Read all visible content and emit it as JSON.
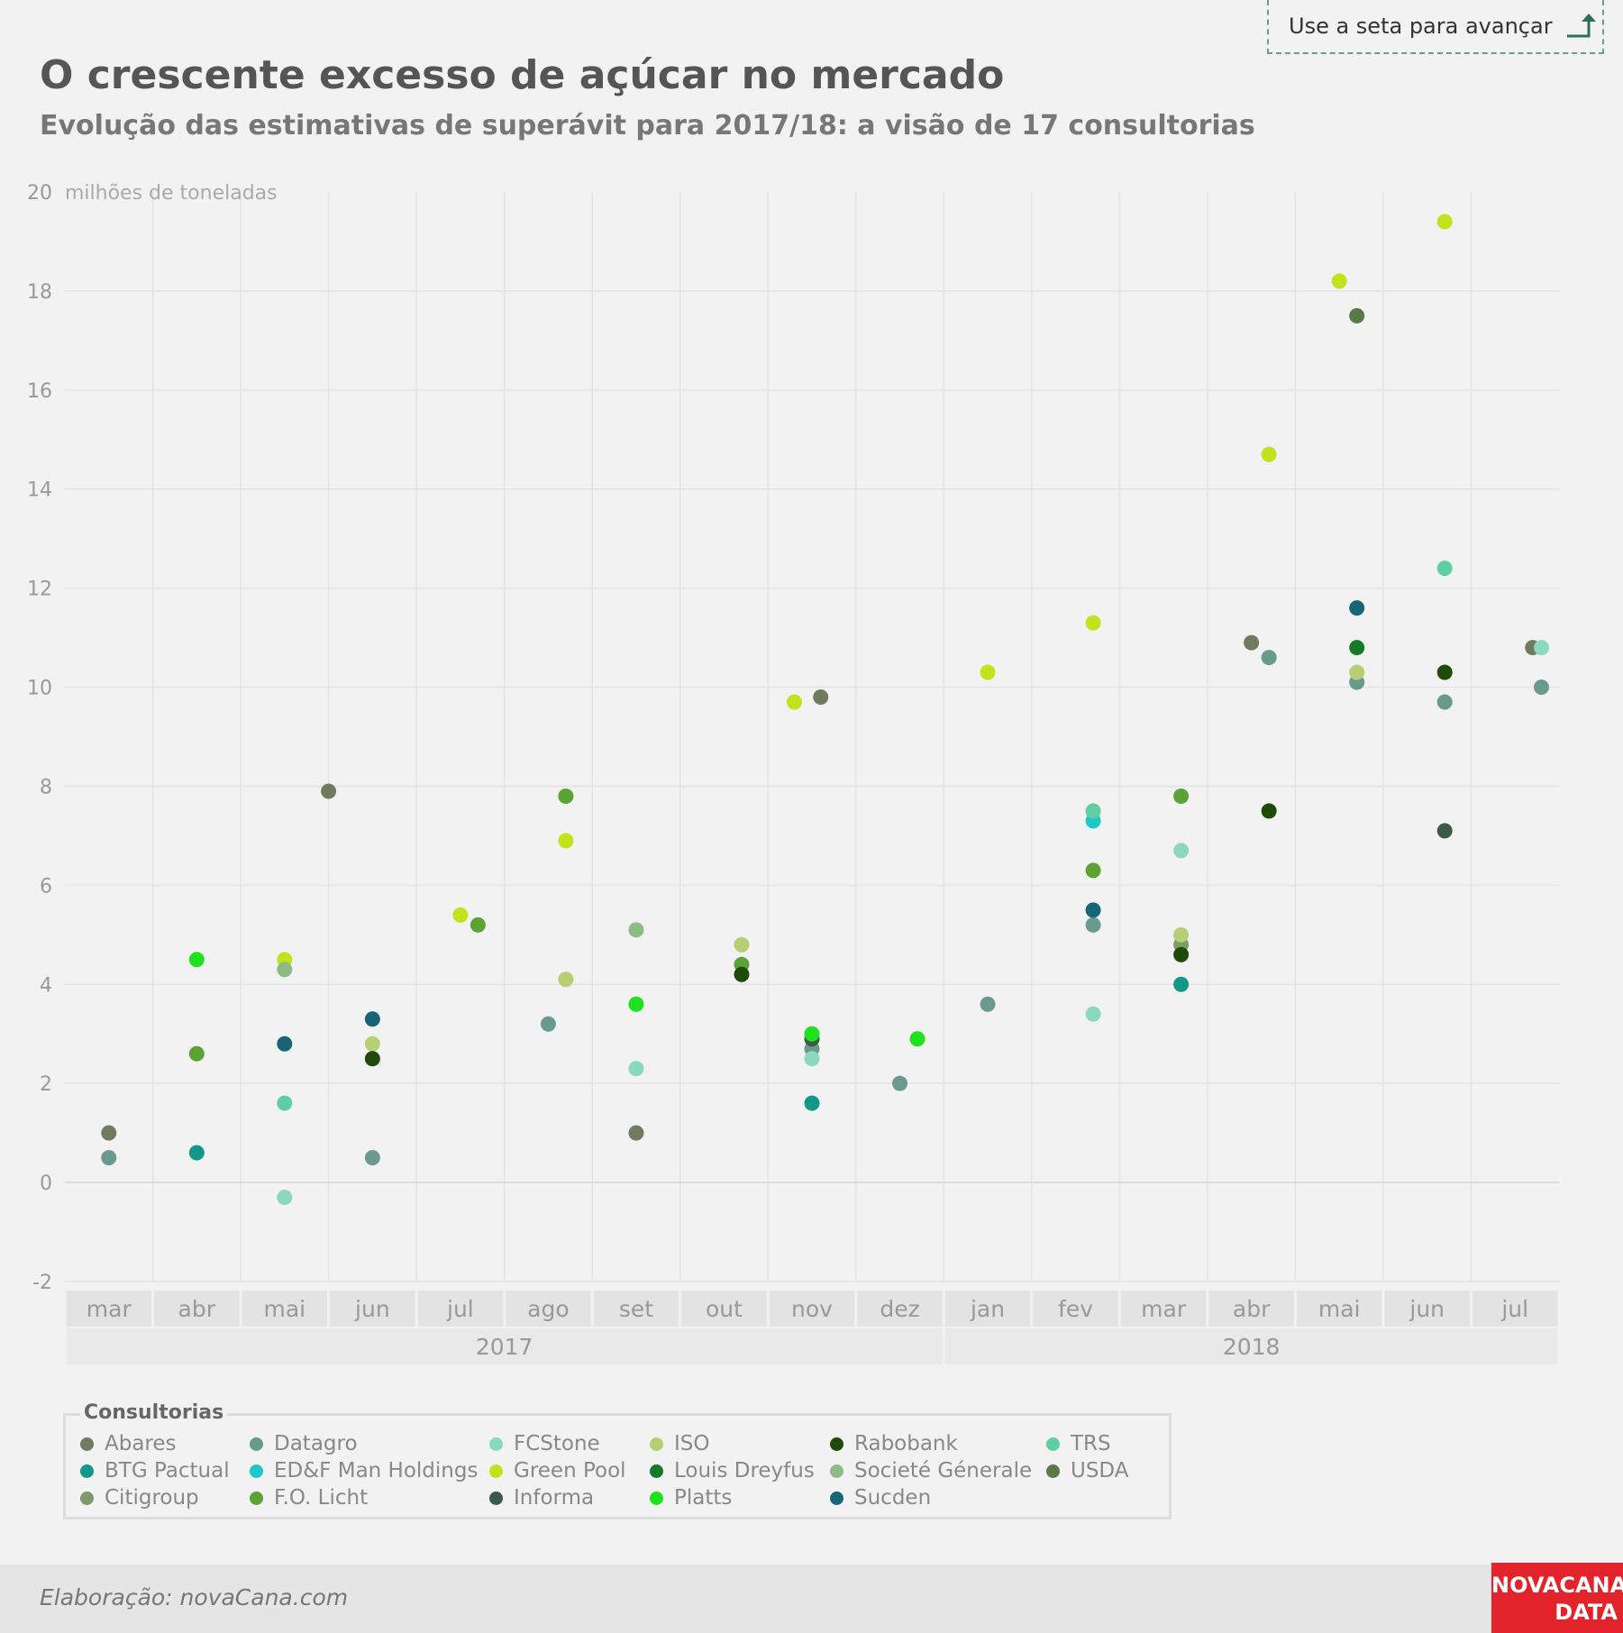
{
  "header": {
    "title": "O crescente excesso de açúcar no mercado",
    "subtitle": "Evolução das estimativas de superávit para 2017/18: a visão de 17 consultorias",
    "nav_hint": "Use a seta para avançar"
  },
  "footer": {
    "credit": "Elaboração: novaCana.com",
    "brand_line1": "NOVACANA",
    "brand_line2": "DATA"
  },
  "legend": {
    "title": "Consultorias"
  },
  "chart_data": {
    "type": "scatter",
    "title": "O crescente excesso de açúcar no mercado",
    "subtitle": "Evolução das estimativas de superávit para 2017/18: a visão de 17 consultorias",
    "ylabel": "milhões de toneladas",
    "ylim": [
      -2,
      20
    ],
    "yticks": [
      -2,
      0,
      2,
      4,
      6,
      8,
      10,
      12,
      14,
      16,
      18,
      20
    ],
    "grid": true,
    "x_categories": [
      "mar",
      "abr",
      "mai",
      "jun",
      "jul",
      "ago",
      "set",
      "out",
      "nov",
      "dez",
      "jan",
      "fev",
      "mar",
      "abr",
      "mai",
      "jun",
      "jul"
    ],
    "years": [
      {
        "label": "2017",
        "from": 0,
        "to": 9
      },
      {
        "label": "2018",
        "from": 10,
        "to": 16
      }
    ],
    "legend_position": "bottom-left",
    "series": [
      {
        "name": "Abares",
        "color": "#6e7b5f",
        "points": [
          [
            0,
            1.0
          ],
          [
            2.5,
            7.9
          ],
          [
            6,
            1.0
          ],
          [
            8.1,
            9.8
          ],
          [
            13,
            10.9
          ],
          [
            16.2,
            10.8
          ]
        ]
      },
      {
        "name": "BTG Pactual",
        "color": "#12988a",
        "points": [
          [
            1,
            0.6
          ],
          [
            8,
            1.6
          ],
          [
            12.2,
            4.0
          ]
        ]
      },
      {
        "name": "Citigroup",
        "color": "#7d9b6a",
        "points": [
          [
            12.2,
            4.8
          ]
        ]
      },
      {
        "name": "Datagro",
        "color": "#6a9a8e",
        "points": [
          [
            0,
            0.5
          ],
          [
            3,
            0.5
          ],
          [
            5,
            3.2
          ],
          [
            8,
            2.7
          ],
          [
            9,
            2.0
          ],
          [
            10,
            3.6
          ],
          [
            11.2,
            5.2
          ],
          [
            13.2,
            10.6
          ],
          [
            14.2,
            10.1
          ],
          [
            15.2,
            9.7
          ],
          [
            16.3,
            10.0
          ]
        ]
      },
      {
        "name": "ED&F Man Holdings",
        "color": "#1ec8c8",
        "points": [
          [
            11.2,
            7.3
          ]
        ]
      },
      {
        "name": "F.O. Licht",
        "color": "#5aa334",
        "points": [
          [
            1,
            2.6
          ],
          [
            4.2,
            5.2
          ],
          [
            5.2,
            7.8
          ],
          [
            7.2,
            4.4
          ],
          [
            11.2,
            6.3
          ],
          [
            12.2,
            7.8
          ]
        ]
      },
      {
        "name": "FCStone",
        "color": "#8ad9bd",
        "points": [
          [
            2,
            -0.3
          ],
          [
            6,
            2.3
          ],
          [
            8,
            2.5
          ],
          [
            11.2,
            3.4
          ],
          [
            12.2,
            6.7
          ],
          [
            16.3,
            10.8
          ]
        ]
      },
      {
        "name": "Green Pool",
        "color": "#c1e21c",
        "points": [
          [
            2,
            4.5
          ],
          [
            4,
            5.4
          ],
          [
            5.2,
            6.9
          ],
          [
            7.8,
            9.7
          ],
          [
            10,
            10.3
          ],
          [
            11.2,
            11.3
          ],
          [
            13.2,
            14.7
          ],
          [
            14,
            18.2
          ],
          [
            15.2,
            19.4
          ]
        ]
      },
      {
        "name": "Informa",
        "color": "#3c5a48",
        "points": [
          [
            8,
            2.9
          ],
          [
            15.2,
            7.1
          ]
        ]
      },
      {
        "name": "ISO",
        "color": "#b6cf73",
        "points": [
          [
            3,
            2.8
          ],
          [
            5.2,
            4.1
          ],
          [
            7.2,
            4.8
          ],
          [
            12.2,
            5.0
          ],
          [
            14.2,
            10.3
          ]
        ]
      },
      {
        "name": "Louis Dreyfus",
        "color": "#157a28",
        "points": [
          [
            14.2,
            10.8
          ]
        ]
      },
      {
        "name": "Platts",
        "color": "#1ee21e",
        "points": [
          [
            1,
            4.5
          ],
          [
            6,
            3.6
          ],
          [
            8,
            3.0
          ],
          [
            9.2,
            2.9
          ]
        ]
      },
      {
        "name": "Rabobank",
        "color": "#1e4a0a",
        "points": [
          [
            3,
            2.5
          ],
          [
            7.2,
            4.2
          ],
          [
            12.2,
            4.6
          ],
          [
            13.2,
            7.5
          ],
          [
            15.2,
            10.3
          ]
        ]
      },
      {
        "name": "Societé Génerale",
        "color": "#8dbb85",
        "points": [
          [
            2,
            4.3
          ],
          [
            6,
            5.1
          ]
        ]
      },
      {
        "name": "Sucden",
        "color": "#176577",
        "points": [
          [
            2,
            2.8
          ],
          [
            3,
            3.3
          ],
          [
            11.2,
            5.5
          ],
          [
            14.2,
            11.6
          ]
        ]
      },
      {
        "name": "TRS",
        "color": "#5fcfa3",
        "points": [
          [
            2,
            1.6
          ],
          [
            11.2,
            7.5
          ],
          [
            15.2,
            12.4
          ]
        ]
      },
      {
        "name": "USDA",
        "color": "#5a7848",
        "points": [
          [
            14.2,
            17.5
          ]
        ]
      }
    ]
  }
}
